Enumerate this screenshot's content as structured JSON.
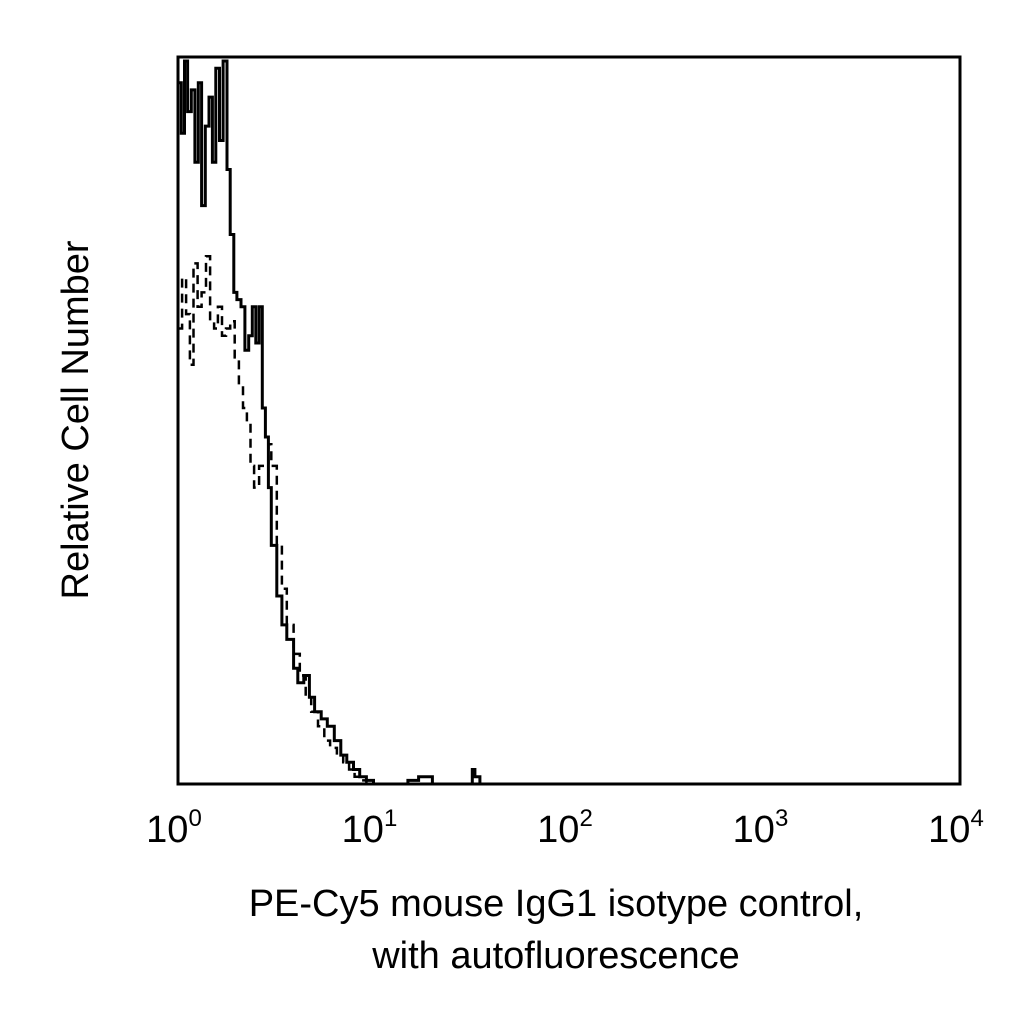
{
  "chart_data": {
    "type": "line",
    "title": "",
    "xlabel": [
      "PE-Cy5 mouse IgG1 isotype control,",
      "with autofluorescence"
    ],
    "ylabel": "Relative Cell Number",
    "x_scale": "log",
    "xlim": [
      1,
      10000
    ],
    "ylim": [
      0,
      100
    ],
    "x_ticks": [
      {
        "base": "10",
        "exp": "0",
        "value": 1
      },
      {
        "base": "10",
        "exp": "1",
        "value": 10
      },
      {
        "base": "10",
        "exp": "2",
        "value": 100
      },
      {
        "base": "10",
        "exp": "3",
        "value": 1000
      },
      {
        "base": "10",
        "exp": "4",
        "value": 10000
      }
    ],
    "grid": false,
    "series": [
      {
        "style": "solid",
        "color": "#000000",
        "x": [
          1.0,
          1.04,
          1.08,
          1.12,
          1.17,
          1.22,
          1.27,
          1.32,
          1.38,
          1.44,
          1.5,
          1.56,
          1.63,
          1.7,
          1.78,
          1.85,
          1.93,
          2.0,
          2.1,
          2.2,
          2.3,
          2.4,
          2.5,
          2.6,
          2.7,
          2.8,
          2.9,
          3.0,
          3.2,
          3.4,
          3.6,
          3.9,
          4.1,
          4.4,
          4.7,
          5.0,
          5.4,
          5.8,
          6.3,
          6.8,
          7.3,
          7.9,
          8.5,
          9.2,
          10.0,
          12.0,
          15.0,
          17.0,
          20.0,
          25.0,
          30.0,
          32.0,
          33.0,
          35.0,
          40.0
        ],
        "y": [
          97,
          90,
          100,
          93,
          96,
          86,
          97,
          80,
          91,
          95,
          86,
          99,
          89,
          100,
          85,
          76,
          68,
          67,
          66,
          60,
          62,
          66,
          61,
          66,
          52,
          48,
          41,
          33,
          26,
          22,
          20,
          16,
          14,
          15,
          12,
          10,
          9,
          8,
          6,
          4,
          3,
          2,
          1,
          0.5,
          0,
          0,
          0.5,
          1,
          0,
          0,
          0,
          2,
          1,
          0,
          0
        ]
      },
      {
        "style": "dashed",
        "color": "#000000",
        "x": [
          1.0,
          1.05,
          1.1,
          1.15,
          1.2,
          1.26,
          1.32,
          1.39,
          1.46,
          1.53,
          1.6,
          1.68,
          1.76,
          1.85,
          1.95,
          2.05,
          2.15,
          2.25,
          2.35,
          2.45,
          2.6,
          2.75,
          2.9,
          3.0,
          3.2,
          3.4,
          3.6,
          3.9,
          4.2,
          4.5,
          4.8,
          5.2,
          5.6,
          6.0,
          6.5,
          7.0,
          7.5,
          8.0,
          8.6,
          9.2,
          10.0
        ],
        "y": [
          63,
          70,
          65,
          58,
          72,
          66,
          68,
          73,
          64,
          63,
          66,
          62,
          63,
          64,
          59,
          55,
          52,
          50,
          44,
          41,
          44,
          44,
          47,
          44,
          33,
          27,
          22,
          18,
          15,
          12,
          10,
          8,
          6,
          5,
          4,
          3,
          2,
          1,
          0.5,
          0,
          0
        ]
      }
    ]
  }
}
